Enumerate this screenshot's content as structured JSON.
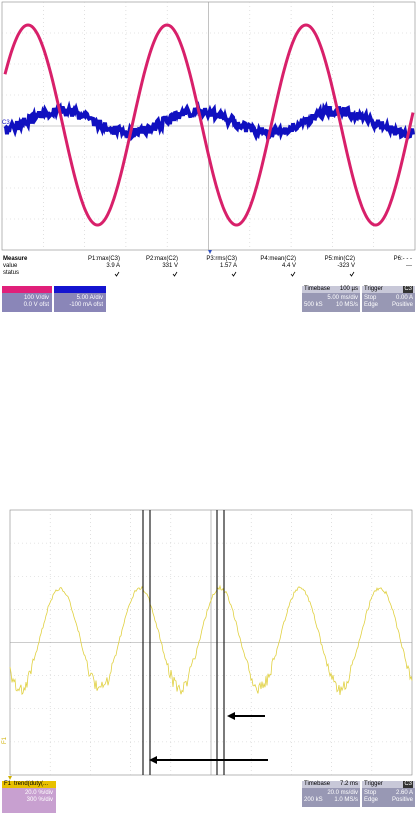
{
  "top": {
    "trace_label": "C3",
    "measure_header": [
      "Measure",
      "P1:max(C3)",
      "P2:max(C2)",
      "P3:rms(C3)",
      "P4:mean(C2)",
      "P5:min(C2)",
      "P6:- - -"
    ],
    "value_row": [
      "value",
      "3.9 A",
      "331 V",
      "1.57 A",
      "4.4 V",
      "-323 V",
      "---"
    ],
    "status_label": "status",
    "ch_a": [
      "100 V/div",
      "0.0 V ofst"
    ],
    "ch_b": [
      "5.00 A/div",
      "-100 mA ofst"
    ],
    "timebase": {
      "title": "Timebase",
      "value": "100 µs",
      "lines": [
        "5.00 ms/div",
        "500 kS",
        "10 MS/s"
      ]
    },
    "trigger": {
      "title": "Trigger",
      "channel": "C3",
      "lines": [
        "Stop",
        "0.00 A",
        "Edge",
        "Positive"
      ]
    }
  },
  "bottom": {
    "trace_label": "F1",
    "func": {
      "title": "F1",
      "name": "trend(duty(...",
      "lines": [
        "20.0 %/div",
        "300 %/div"
      ]
    },
    "timebase": {
      "title": "Timebase",
      "value": "7.2 ms",
      "lines": [
        "20.0 ms/div",
        "200 kS",
        "1.0 MS/s"
      ]
    },
    "trigger": {
      "title": "Trigger",
      "channel": "C3",
      "lines": [
        "Stop",
        "2.60 A",
        "Edge",
        "Positive"
      ]
    }
  }
}
